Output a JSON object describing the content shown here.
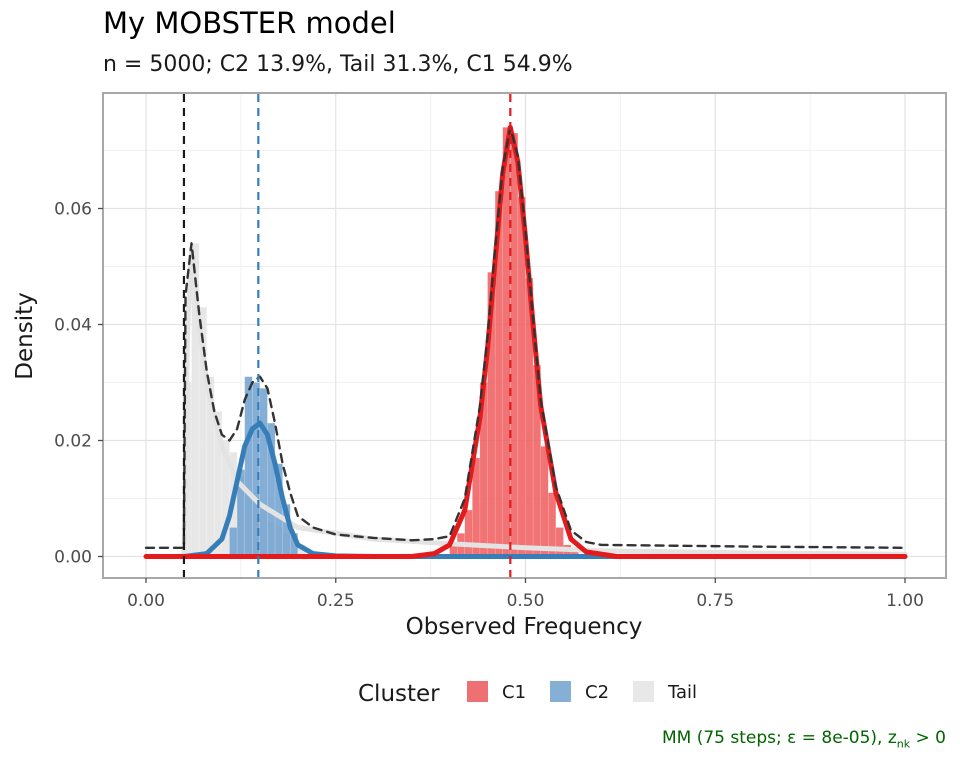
{
  "chart_data": {
    "type": "bar",
    "title": "My MOBSTER model",
    "subtitle": "n = 5000; C2 13.9%, Tail 31.3%, C1 54.9%",
    "xlabel": "Observed Frequency",
    "ylabel": "Density",
    "xlim": [
      0,
      1
    ],
    "ylim": [
      0,
      0.07
    ],
    "xticks": [
      "0.00",
      "0.25",
      "0.50",
      "0.75",
      "1.00"
    ],
    "yticks": [
      "0.00",
      "0.02",
      "0.04",
      "0.06"
    ],
    "grid": true,
    "legend": {
      "title": "Cluster",
      "position": "bottom",
      "labels": [
        "C1",
        "C2",
        "Tail"
      ]
    },
    "colors": {
      "C1": "#e41a1c",
      "C2": "#377eb8",
      "Tail": "#e0e0e0",
      "mixture": "#333333"
    },
    "histograms": [
      {
        "name": "Tail",
        "x": [
          0.055,
          0.065,
          0.075,
          0.085,
          0.095,
          0.105,
          0.115,
          0.125,
          0.135,
          0.145,
          0.155,
          0.165,
          0.175,
          0.185,
          0.195,
          0.205
        ],
        "values": [
          0.03,
          0.054,
          0.043,
          0.031,
          0.025,
          0.02,
          0.018,
          0.014,
          0.011,
          0.01,
          0.008,
          0.006,
          0.005,
          0.004,
          0.004,
          0.002
        ]
      },
      {
        "name": "C2",
        "x": [
          0.115,
          0.125,
          0.135,
          0.145,
          0.155,
          0.165,
          0.175,
          0.185,
          0.195
        ],
        "values": [
          0.005,
          0.015,
          0.031,
          0.03,
          0.029,
          0.023,
          0.016,
          0.009,
          0.004
        ]
      },
      {
        "name": "C1",
        "x": [
          0.405,
          0.415,
          0.425,
          0.435,
          0.445,
          0.455,
          0.465,
          0.475,
          0.485,
          0.495,
          0.505,
          0.515,
          0.525,
          0.535,
          0.545,
          0.555,
          0.565
        ],
        "values": [
          0.002,
          0.004,
          0.008,
          0.017,
          0.03,
          0.049,
          0.063,
          0.074,
          0.073,
          0.062,
          0.048,
          0.033,
          0.019,
          0.011,
          0.005,
          0.002,
          0.001
        ]
      }
    ],
    "densities": [
      {
        "name": "Tail",
        "x": [
          0.05,
          0.055,
          0.06,
          0.07,
          0.08,
          0.1,
          0.12,
          0.15,
          0.2,
          0.3,
          0.4,
          0.5,
          0.6,
          0.8,
          1.0
        ],
        "y": [
          0.0,
          0.04,
          0.053,
          0.04,
          0.03,
          0.019,
          0.013,
          0.009,
          0.005,
          0.003,
          0.0022,
          0.0015,
          0.001,
          0.0006,
          0.0004
        ]
      },
      {
        "name": "C2",
        "x": [
          0.05,
          0.08,
          0.1,
          0.11,
          0.12,
          0.13,
          0.14,
          0.15,
          0.16,
          0.17,
          0.18,
          0.19,
          0.2,
          0.22,
          0.25,
          0.3,
          0.5,
          1.0
        ],
        "y": [
          0.0,
          0.0005,
          0.003,
          0.007,
          0.013,
          0.019,
          0.022,
          0.023,
          0.021,
          0.016,
          0.01,
          0.005,
          0.002,
          0.0005,
          0.0001,
          0.0,
          0.0,
          0.0
        ]
      },
      {
        "name": "C1",
        "x": [
          0.0,
          0.35,
          0.38,
          0.4,
          0.42,
          0.44,
          0.45,
          0.46,
          0.47,
          0.48,
          0.49,
          0.5,
          0.51,
          0.52,
          0.54,
          0.56,
          0.58,
          0.62,
          1.0
        ],
        "y": [
          0.0,
          0.0,
          0.0005,
          0.002,
          0.008,
          0.024,
          0.036,
          0.051,
          0.066,
          0.074,
          0.068,
          0.055,
          0.04,
          0.026,
          0.011,
          0.003,
          0.0008,
          0.0,
          0.0
        ]
      },
      {
        "name": "mixture",
        "x": [
          0.0,
          0.05,
          0.052,
          0.06,
          0.07,
          0.08,
          0.09,
          0.1,
          0.11,
          0.12,
          0.13,
          0.14,
          0.15,
          0.16,
          0.17,
          0.18,
          0.19,
          0.2,
          0.22,
          0.25,
          0.3,
          0.35,
          0.38,
          0.4,
          0.42,
          0.44,
          0.45,
          0.46,
          0.47,
          0.48,
          0.49,
          0.5,
          0.51,
          0.52,
          0.54,
          0.56,
          0.58,
          0.6,
          0.8,
          1.0
        ],
        "y": [
          0.0015,
          0.0015,
          0.045,
          0.054,
          0.042,
          0.032,
          0.025,
          0.021,
          0.02,
          0.022,
          0.027,
          0.03,
          0.031,
          0.029,
          0.023,
          0.016,
          0.011,
          0.007,
          0.005,
          0.0038,
          0.0032,
          0.0028,
          0.003,
          0.0035,
          0.01,
          0.026,
          0.038,
          0.053,
          0.067,
          0.074,
          0.069,
          0.056,
          0.041,
          0.027,
          0.012,
          0.0045,
          0.0025,
          0.002,
          0.0017,
          0.0015
        ]
      }
    ],
    "vlines": [
      {
        "name": "Tail-cutoff",
        "x": 0.05,
        "color": "#1a1a1a",
        "style": "dashed"
      },
      {
        "name": "C2-mean",
        "x": 0.148,
        "color": "#377eb8",
        "style": "dashed"
      },
      {
        "name": "C1-mean",
        "x": 0.48,
        "color": "#e41a1c",
        "style": "dashed"
      }
    ],
    "caption_text": "MM (75 steps; ε = 8e-05), z",
    "caption_sub": "nk",
    "caption_tail": " > 0"
  }
}
